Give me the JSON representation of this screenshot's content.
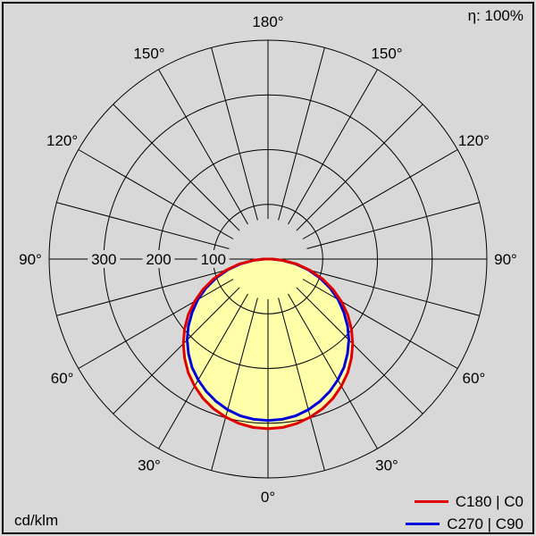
{
  "chart_data": {
    "type": "line",
    "coordinate_system": "polar",
    "efficiency_label": "η: 100%",
    "units_label": "cd/klm",
    "radial_max": 400,
    "radial_ticks": [
      100,
      200,
      300
    ],
    "radial_circles": [
      100,
      200,
      300,
      400
    ],
    "spoke_step_deg": 15,
    "angle_labels_deg": [
      0,
      30,
      60,
      90,
      120,
      150,
      180
    ],
    "gamma_deg": [
      0,
      5,
      10,
      15,
      20,
      25,
      30,
      35,
      40,
      45,
      50,
      55,
      60,
      65,
      70,
      75,
      80,
      85,
      90
    ],
    "series": [
      {
        "name": "C180 | C0",
        "color": "#e00000",
        "values": [
          310,
          309,
          305,
          299,
          291,
          281,
          268,
          254,
          237,
          219,
          199,
          178,
          155,
          131,
          106,
          80,
          54,
          27,
          8
        ]
      },
      {
        "name": "C270 | C90",
        "color": "#0000dd",
        "values": [
          295,
          294,
          291,
          285,
          277,
          267,
          255,
          242,
          226,
          209,
          190,
          169,
          148,
          125,
          101,
          76,
          51,
          26,
          6
        ]
      }
    ],
    "fill_color": "#ffffaa",
    "background_color": "#d8d8d8",
    "grid_color": "#000000",
    "legend_position": "bottom-right"
  }
}
